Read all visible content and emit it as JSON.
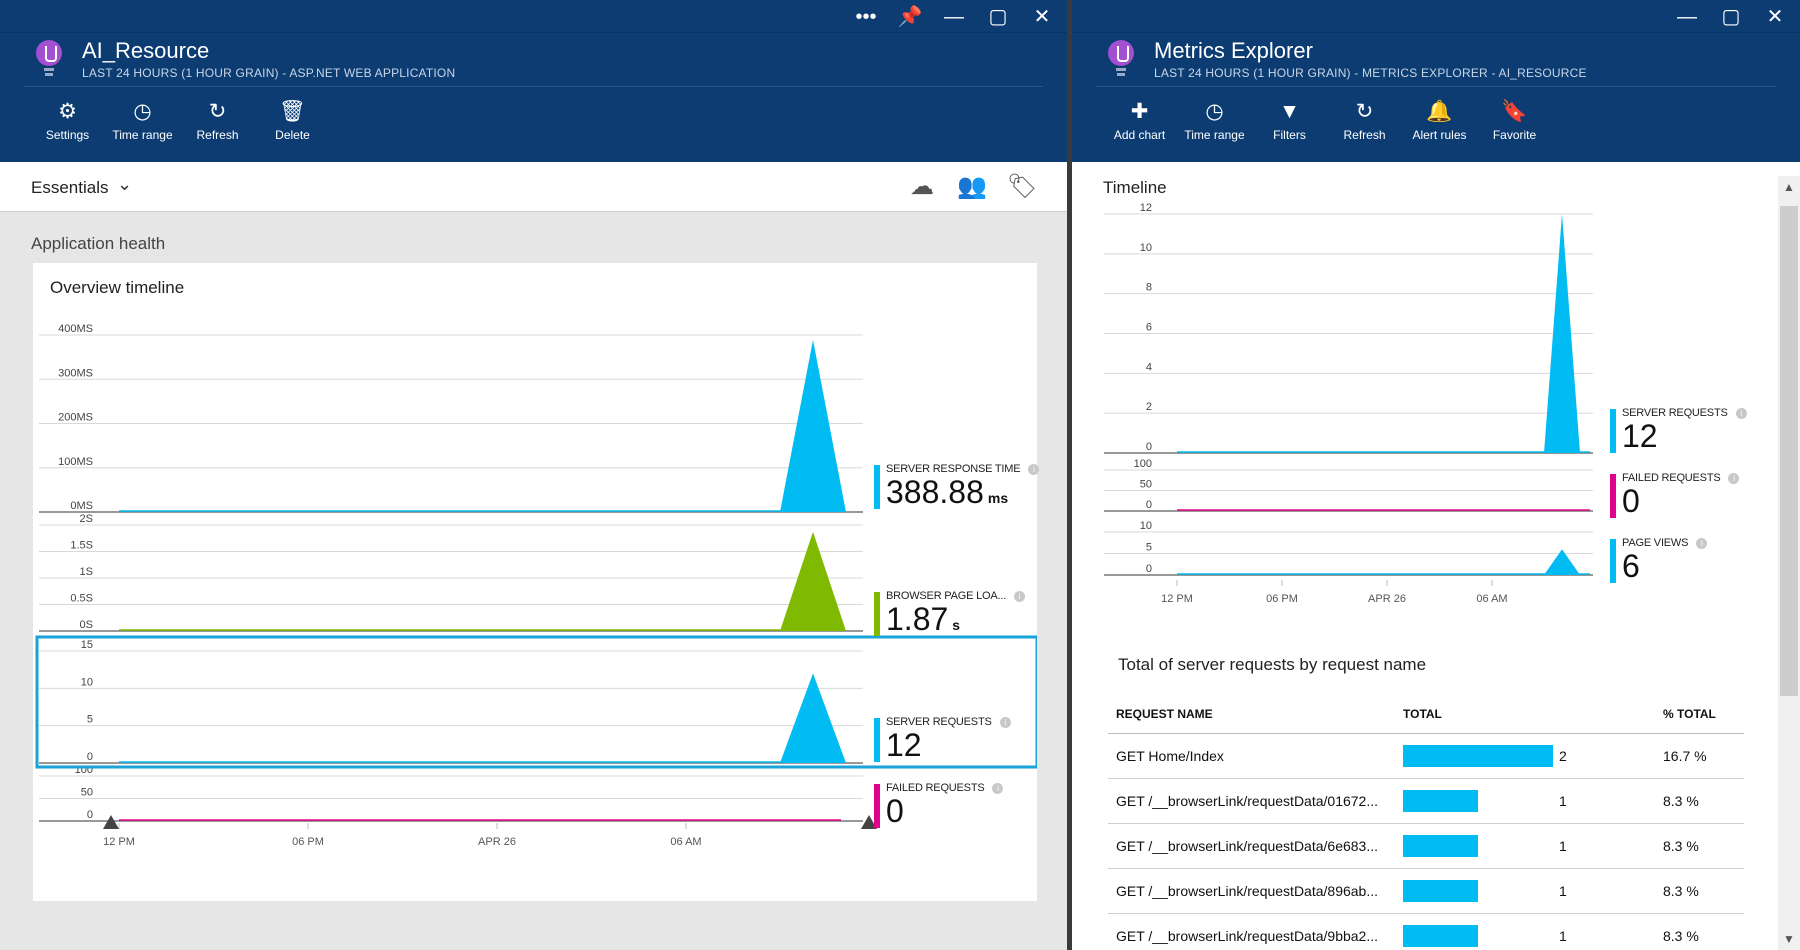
{
  "left_blade": {
    "window_controls": [
      "•••",
      "📌",
      "—",
      "▢",
      "✕"
    ],
    "title": "AI_Resource",
    "subtitle": "LAST 24 HOURS (1 HOUR GRAIN) - ASP.NET WEB APPLICATION",
    "toolbar": [
      {
        "label": "Settings",
        "icon": "gear-icon",
        "glyph": "⚙"
      },
      {
        "label": "Time range",
        "icon": "clock-icon",
        "glyph": "◷"
      },
      {
        "label": "Refresh",
        "icon": "refresh-icon",
        "glyph": "↻"
      },
      {
        "label": "Delete",
        "icon": "trash-icon",
        "glyph": "🗑"
      }
    ],
    "essentials_label": "Essentials",
    "section_title": "Application health",
    "overview_title": "Overview timeline",
    "metrics": [
      {
        "name": "SERVER RESPONSE TIME",
        "value": "388.88",
        "unit": "ms",
        "color": "#00bcf2"
      },
      {
        "name": "BROWSER PAGE LOA...",
        "value": "1.87",
        "unit": "s",
        "color": "#7fba00"
      },
      {
        "name": "SERVER REQUESTS",
        "value": "12",
        "unit": "",
        "color": "#00bcf2"
      },
      {
        "name": "FAILED REQUESTS",
        "value": "0",
        "unit": "",
        "color": "#e3008c"
      }
    ]
  },
  "right_blade": {
    "window_controls": [
      "—",
      "▢",
      "✕"
    ],
    "title": "Metrics Explorer",
    "subtitle": "LAST 24 HOURS (1 HOUR GRAIN) - METRICS EXPLORER - AI_RESOURCE",
    "toolbar": [
      {
        "label": "Add chart",
        "icon": "plus-icon",
        "glyph": "✚"
      },
      {
        "label": "Time range",
        "icon": "clock-icon",
        "glyph": "◷"
      },
      {
        "label": "Filters",
        "icon": "filter-icon",
        "glyph": "▼"
      },
      {
        "label": "Refresh",
        "icon": "refresh-icon",
        "glyph": "↻"
      },
      {
        "label": "Alert rules",
        "icon": "bell-icon",
        "glyph": "🔔"
      },
      {
        "label": "Favorite",
        "icon": "bookmark-icon",
        "glyph": "🔖"
      }
    ],
    "timeline_title": "Timeline",
    "metrics": [
      {
        "name": "SERVER REQUESTS",
        "value": "12",
        "color": "#00bcf2"
      },
      {
        "name": "FAILED REQUESTS",
        "value": "0",
        "color": "#e3008c"
      },
      {
        "name": "PAGE VIEWS",
        "value": "6",
        "color": "#00bcf2"
      }
    ],
    "table_title": "Total of server requests by request name",
    "table": {
      "headers": [
        "REQUEST NAME",
        "TOTAL",
        "% TOTAL"
      ],
      "rows": [
        {
          "name": "GET Home/Index",
          "total": "2",
          "pct": "16.7 %",
          "share": 0.167
        },
        {
          "name": "GET /__browserLink/requestData/01672...",
          "total": "1",
          "pct": "8.3 %",
          "share": 0.083
        },
        {
          "name": "GET /__browserLink/requestData/6e683...",
          "total": "1",
          "pct": "8.3 %",
          "share": 0.083
        },
        {
          "name": "GET /__browserLink/requestData/896ab...",
          "total": "1",
          "pct": "8.3 %",
          "share": 0.083
        },
        {
          "name": "GET /__browserLink/requestData/9bba2...",
          "total": "1",
          "pct": "8.3 %",
          "share": 0.083
        }
      ]
    }
  },
  "chart_data": [
    {
      "type": "area",
      "title": "Overview timeline",
      "x_ticks": [
        "12 PM",
        "06 PM",
        "APR 26",
        "06 AM"
      ],
      "panels": [
        {
          "name": "SERVER RESPONSE TIME",
          "ticks": [
            "400MS",
            "300MS",
            "200MS",
            "100MS",
            "0MS"
          ],
          "ylim": [
            0,
            400
          ],
          "peak": 388.88,
          "color": "#00bcf2"
        },
        {
          "name": "BROWSER PAGE LOAD",
          "ticks": [
            "2S",
            "1.5S",
            "1S",
            "0.5S",
            "0S"
          ],
          "ylim": [
            0,
            2
          ],
          "peak": 1.87,
          "color": "#7fba00"
        },
        {
          "name": "SERVER REQUESTS",
          "ticks": [
            "15",
            "10",
            "5",
            "0"
          ],
          "ylim": [
            0,
            15
          ],
          "peak": 12,
          "color": "#00bcf2"
        },
        {
          "name": "FAILED REQUESTS",
          "ticks": [
            "100",
            "50",
            "0"
          ],
          "ylim": [
            0,
            100
          ],
          "peak": 0,
          "color": "#e3008c"
        }
      ]
    },
    {
      "type": "area",
      "title": "Timeline",
      "x_ticks": [
        "12 PM",
        "06 PM",
        "APR 26",
        "06 AM"
      ],
      "panels": [
        {
          "name": "SERVER REQUESTS",
          "ticks": [
            "12",
            "10",
            "8",
            "6",
            "4",
            "2",
            "0"
          ],
          "ylim": [
            0,
            12
          ],
          "peak": 12,
          "color": "#00bcf2"
        },
        {
          "name": "FAILED REQUESTS",
          "ticks": [
            "100",
            "50",
            "0"
          ],
          "ylim": [
            0,
            100
          ],
          "peak": 0,
          "color": "#e3008c"
        },
        {
          "name": "PAGE VIEWS",
          "ticks": [
            "10",
            "5",
            "0"
          ],
          "ylim": [
            0,
            10
          ],
          "peak": 6,
          "color": "#00bcf2"
        }
      ]
    }
  ]
}
